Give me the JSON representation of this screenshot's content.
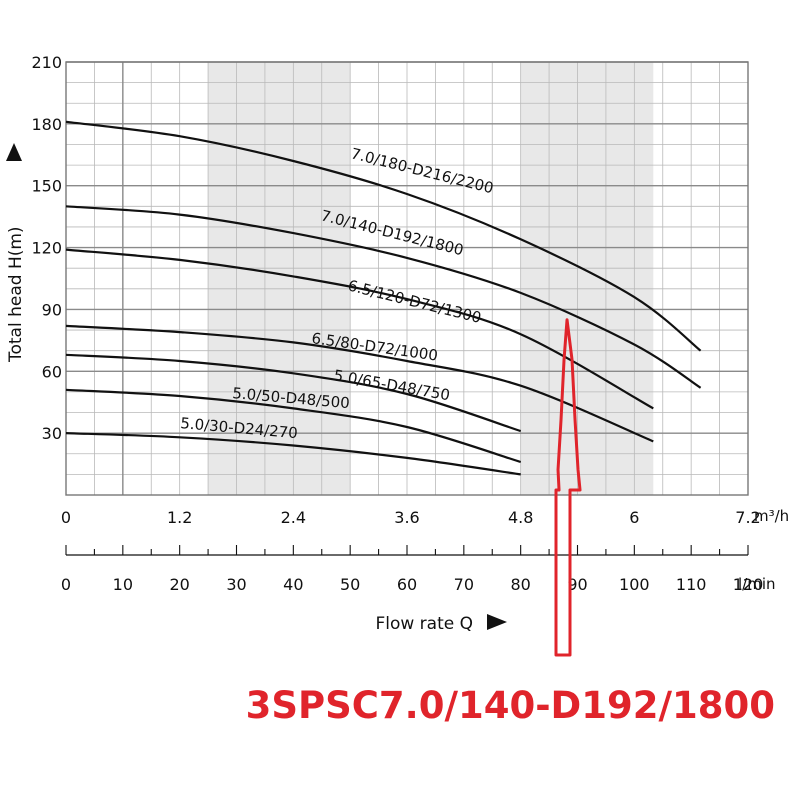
{
  "chart_data": {
    "type": "line",
    "title": "",
    "xlabel": "Flow rate Q",
    "ylabel": "Total head H(m)",
    "xlim": [
      0,
      7.2
    ],
    "ylim": [
      0,
      210
    ],
    "x_unit": "m³/h",
    "x_ticks": [
      "0",
      "1.2",
      "2.4",
      "3.6",
      "4.8",
      "6",
      "7.2"
    ],
    "x_tick_values": [
      0,
      1.2,
      2.4,
      3.6,
      4.8,
      6,
      7.2
    ],
    "y_ticks": [
      "210",
      "180",
      "150",
      "120",
      "90",
      "60",
      "30"
    ],
    "y_tick_values": [
      210,
      180,
      150,
      120,
      90,
      60,
      30
    ],
    "secondary_x_unit": "l/min",
    "secondary_x_ticks": [
      "0",
      "10",
      "20",
      "30",
      "40",
      "50",
      "60",
      "70",
      "80",
      "90",
      "100",
      "110",
      "120"
    ],
    "secondary_x_tick_values": [
      0,
      10,
      20,
      30,
      40,
      50,
      60,
      70,
      80,
      90,
      100,
      110,
      120
    ],
    "shaded_bands_m3h": [
      [
        1.5,
        3.0
      ],
      [
        4.8,
        6.2
      ]
    ],
    "grid": true,
    "series": [
      {
        "name": "7.0/180-D216/2200",
        "x": [
          0,
          1.2,
          2.4,
          3.6,
          4.8,
          6.0,
          6.7
        ],
        "y": [
          181,
          174,
          162,
          146,
          124,
          96,
          70
        ]
      },
      {
        "name": "7.0/140-D192/1800",
        "x": [
          0,
          1.2,
          2.4,
          3.6,
          4.8,
          6.0,
          6.7
        ],
        "y": [
          140,
          136,
          127,
          115,
          98,
          73,
          52
        ]
      },
      {
        "name": "6.5/120-D72/1300",
        "x": [
          0,
          1.2,
          2.4,
          3.6,
          4.8,
          6.2
        ],
        "y": [
          119,
          114,
          106,
          95,
          78,
          42
        ]
      },
      {
        "name": "6.5/80-D72/1000",
        "x": [
          0,
          1.2,
          2.4,
          3.6,
          4.8,
          6.2
        ],
        "y": [
          82,
          79,
          74,
          65,
          53,
          26
        ]
      },
      {
        "name": "5.0/65-D48/750",
        "x": [
          0,
          1.2,
          2.4,
          3.6,
          4.8
        ],
        "y": [
          68,
          65,
          59,
          49,
          31
        ]
      },
      {
        "name": "5.0/50-D48/500",
        "x": [
          0,
          1.2,
          2.4,
          3.6,
          4.8
        ],
        "y": [
          51,
          48,
          42,
          33,
          16
        ]
      },
      {
        "name": "5.0/30-D24/270",
        "x": [
          0,
          1.2,
          2.4,
          3.6,
          4.8
        ],
        "y": [
          30,
          28,
          24,
          18,
          10
        ]
      }
    ],
    "highlight": {
      "model": "3SPSC7.0/140-D192/1800",
      "flow_m3h": 5.3,
      "head_m": 85,
      "color": "#e0242b"
    }
  },
  "colors": {
    "curve": "#111111",
    "grid": "#b9b9b9",
    "band": "#e8e8e8",
    "highlight": "#e0242b"
  }
}
